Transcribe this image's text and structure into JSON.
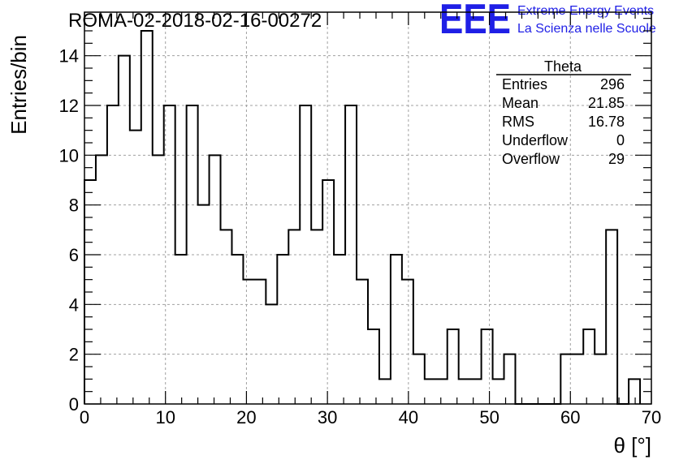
{
  "chart_data": {
    "type": "histogram",
    "title": "ROMA-02-2018-02-16-00272",
    "xlabel": "θ [°]",
    "ylabel": "Entries/bin",
    "xlim": [
      0,
      70
    ],
    "ylim": [
      0,
      15.75
    ],
    "bin_width": 1.4,
    "bin_edges_start": 0,
    "values": [
      9,
      10,
      12,
      14,
      11,
      15,
      10,
      12,
      6,
      12,
      8,
      10,
      7,
      6,
      5,
      5,
      4,
      6,
      7,
      12,
      7,
      9,
      6,
      12,
      5,
      3,
      1,
      6,
      5,
      2,
      1,
      1,
      3,
      1,
      1,
      3,
      1,
      2,
      0,
      0,
      0,
      0,
      2,
      2,
      3,
      2,
      7,
      0,
      1
    ],
    "x_ticks": [
      0,
      10,
      20,
      30,
      40,
      50,
      60,
      70
    ],
    "y_ticks": [
      0,
      2,
      4,
      6,
      8,
      10,
      12,
      14
    ],
    "grid": true,
    "line_color": "#000000"
  },
  "stats_box": {
    "title": "Theta",
    "rows": [
      {
        "label": "Entries",
        "value": "296"
      },
      {
        "label": "Mean",
        "value": "21.85"
      },
      {
        "label": "RMS",
        "value": "16.78"
      },
      {
        "label": "Underflow",
        "value": "0"
      },
      {
        "label": "Overflow",
        "value": "29"
      }
    ]
  },
  "logo": {
    "text": "EEE",
    "line1": "Extreme Energy Events",
    "line2": "La Scienza nelle Scuole",
    "color": "#1f1fe6"
  }
}
